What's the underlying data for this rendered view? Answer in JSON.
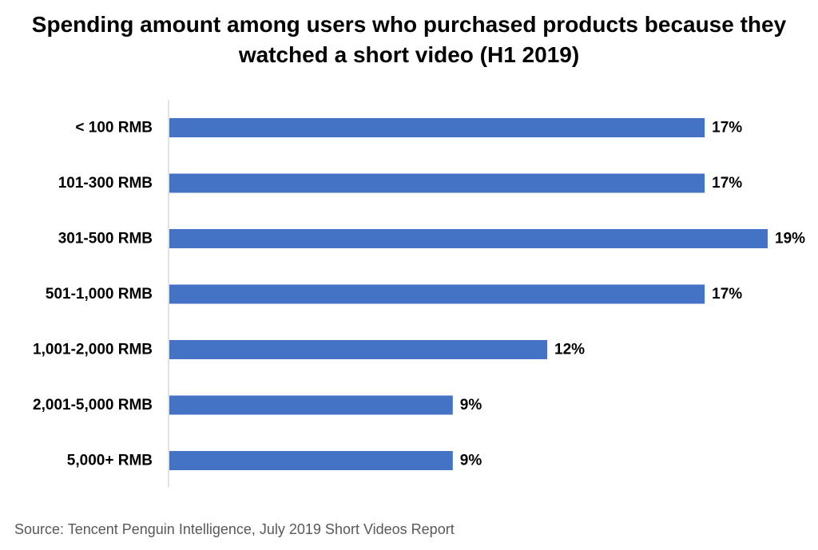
{
  "chart_data": {
    "type": "bar",
    "orientation": "horizontal",
    "title_lines": [
      "Spending amount among users who purchased products because they",
      "watched a short video (H1 2019)"
    ],
    "categories": [
      "< 100 RMB",
      "101-300 RMB",
      "301-500 RMB",
      "501-1,000 RMB",
      "1,001-2,000 RMB",
      "2,001-5,000 RMB",
      "5,000+ RMB"
    ],
    "values": [
      17,
      17,
      19,
      17,
      12,
      9,
      9
    ],
    "value_labels": [
      "17%",
      "17%",
      "19%",
      "17%",
      "12%",
      "9%",
      "9%"
    ],
    "unit": "%",
    "xlim": [
      0,
      19
    ],
    "grid": false,
    "legend": "none",
    "bar_color": "#4472C4",
    "axis_color": "#D9D9D9"
  },
  "source": "Source: Tencent Penguin Intelligence, July 2019 Short Videos Report"
}
